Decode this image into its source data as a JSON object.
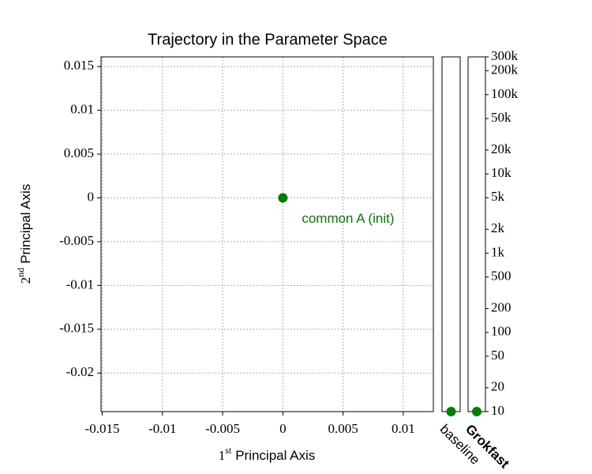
{
  "chart_data": [
    {
      "type": "scatter",
      "title": "Trajectory in the Parameter Space",
      "x_label_number": "1",
      "x_label_sup": "st",
      "x_label_text": "Principal Axis",
      "y_label_number": "2",
      "y_label_sup": "nd",
      "y_label_text": "Principal Axis",
      "x": [
        0.0
      ],
      "values": [
        0.0
      ],
      "color": "#008000",
      "annotation": "common A (init)",
      "xlim": [
        -0.0151,
        0.0125
      ],
      "ylim": [
        -0.0244,
        0.0161
      ],
      "xticks": [
        -0.015,
        -0.01,
        -0.005,
        0.0,
        0.005,
        0.01
      ],
      "yticks": [
        0.015,
        0.01,
        0.005,
        0.0,
        -0.005,
        -0.01,
        -0.015,
        -0.02
      ],
      "grid": true
    },
    {
      "type": "strip",
      "categories": [
        "baseline",
        "Grokfast"
      ],
      "values": [
        10,
        10
      ],
      "color": "#008000",
      "log_y": true,
      "ylim": [
        10,
        300000
      ],
      "yticks": [
        10,
        20,
        50,
        100,
        200,
        500,
        {
          "value": 1000,
          "label": "1k"
        },
        {
          "value": 2000,
          "label": "2k"
        },
        {
          "value": 5000,
          "label": "5k"
        },
        {
          "value": 10000,
          "label": "10k"
        },
        {
          "value": 20000,
          "label": "20k"
        },
        {
          "value": 50000,
          "label": "50k"
        },
        {
          "value": 100000,
          "label": "100k"
        },
        {
          "value": 200000,
          "label": "200k"
        },
        {
          "value": 300000,
          "label": "300k"
        }
      ]
    }
  ]
}
